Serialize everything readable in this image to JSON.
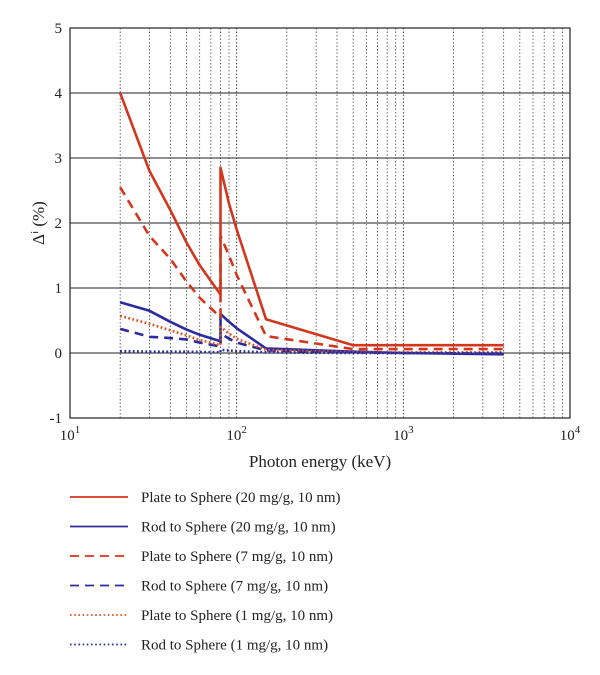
{
  "chart_data": {
    "type": "line",
    "xscale": "log",
    "xlim": [
      10,
      10000
    ],
    "ylim": [
      -1,
      5
    ],
    "xlabel": "Photon energy (keV)",
    "ylabel": "Δⁱ (%)",
    "x_ticks": [
      {
        "value": 10,
        "base": "10",
        "exp": "1"
      },
      {
        "value": 100,
        "base": "10",
        "exp": "2"
      },
      {
        "value": 1000,
        "base": "10",
        "exp": "3"
      },
      {
        "value": 10000,
        "base": "10",
        "exp": "4"
      }
    ],
    "y_ticks": [
      "-1",
      "0",
      "1",
      "2",
      "3",
      "4",
      "5"
    ],
    "grid": true,
    "legend_position": "bottom",
    "series": [
      {
        "name": "Plate to Sphere (20 mg/g, 10 nm)",
        "color": "#d2371e",
        "dash": "solid",
        "points": [
          [
            20,
            4.0
          ],
          [
            30,
            2.8
          ],
          [
            40,
            2.2
          ],
          [
            50,
            1.7
          ],
          [
            60,
            1.35
          ],
          [
            80,
            0.9
          ],
          [
            80,
            2.85
          ],
          [
            90,
            2.3
          ],
          [
            100,
            1.9
          ],
          [
            150,
            0.52
          ],
          [
            500,
            0.12
          ],
          [
            1000,
            0.12
          ],
          [
            4000,
            0.12
          ]
        ]
      },
      {
        "name": "Rod to Sphere (20 mg/g, 10 nm)",
        "color": "#2b2ca0",
        "dash": "solid",
        "points": [
          [
            20,
            0.78
          ],
          [
            30,
            0.65
          ],
          [
            40,
            0.48
          ],
          [
            50,
            0.36
          ],
          [
            60,
            0.28
          ],
          [
            80,
            0.18
          ],
          [
            80,
            0.6
          ],
          [
            90,
            0.48
          ],
          [
            100,
            0.38
          ],
          [
            150,
            0.07
          ],
          [
            500,
            0.02
          ],
          [
            1000,
            0.0
          ],
          [
            4000,
            -0.02
          ]
        ]
      },
      {
        "name": "Plate to Sphere (7 mg/g, 10 nm)",
        "color": "#d2371e",
        "dash": "dashed",
        "points": [
          [
            20,
            2.55
          ],
          [
            30,
            1.8
          ],
          [
            40,
            1.45
          ],
          [
            50,
            1.1
          ],
          [
            60,
            0.85
          ],
          [
            80,
            0.55
          ],
          [
            80,
            1.8
          ],
          [
            90,
            1.5
          ],
          [
            100,
            1.2
          ],
          [
            150,
            0.26
          ],
          [
            500,
            0.06
          ],
          [
            1000,
            0.06
          ],
          [
            4000,
            0.06
          ]
        ]
      },
      {
        "name": "Rod to Sphere (7 mg/g, 10 nm)",
        "color": "#2b2ca0",
        "dash": "dashed",
        "points": [
          [
            20,
            0.37
          ],
          [
            30,
            0.25
          ],
          [
            40,
            0.23
          ],
          [
            50,
            0.21
          ],
          [
            60,
            0.16
          ],
          [
            80,
            0.1
          ],
          [
            80,
            0.3
          ],
          [
            90,
            0.22
          ],
          [
            100,
            0.16
          ],
          [
            150,
            0.04
          ],
          [
            500,
            0.01
          ],
          [
            1000,
            0.0
          ],
          [
            4000,
            -0.01
          ]
        ]
      },
      {
        "name": "Plate to Sphere (1 mg/g, 10 nm)",
        "color": "#e2501e",
        "dash": "dotted",
        "points": [
          [
            20,
            0.57
          ],
          [
            30,
            0.45
          ],
          [
            40,
            0.35
          ],
          [
            50,
            0.27
          ],
          [
            60,
            0.2
          ],
          [
            80,
            0.12
          ],
          [
            80,
            0.4
          ],
          [
            90,
            0.3
          ],
          [
            100,
            0.22
          ],
          [
            150,
            0.05
          ],
          [
            500,
            0.01
          ],
          [
            1000,
            0.01
          ],
          [
            4000,
            0.01
          ]
        ]
      },
      {
        "name": "Rod to Sphere (1 mg/g, 10 nm)",
        "color": "#2b2ca0",
        "dash": "dotted",
        "points": [
          [
            20,
            0.03
          ],
          [
            30,
            0.02
          ],
          [
            50,
            0.02
          ],
          [
            80,
            0.01
          ],
          [
            80,
            0.05
          ],
          [
            100,
            0.03
          ],
          [
            150,
            0.01
          ],
          [
            500,
            0.0
          ],
          [
            1000,
            0.0
          ],
          [
            4000,
            0.0
          ]
        ]
      }
    ]
  }
}
